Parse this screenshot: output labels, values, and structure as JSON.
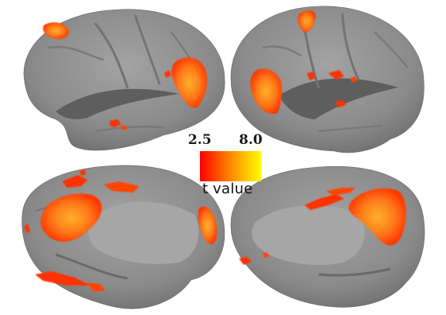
{
  "colorbar": {
    "min_label": "2.5",
    "max_label": "8.0",
    "title": "t value",
    "min_color": "#ff0000",
    "max_color": "#ffff00"
  },
  "colors": {
    "cortex_gray": "#8c8c8c",
    "sulcus_dark": "#5e5e5e",
    "activation_red": "#ff3300",
    "activation_orange": "#ff7a1a",
    "activation_yellow": "#ffb02a"
  }
}
